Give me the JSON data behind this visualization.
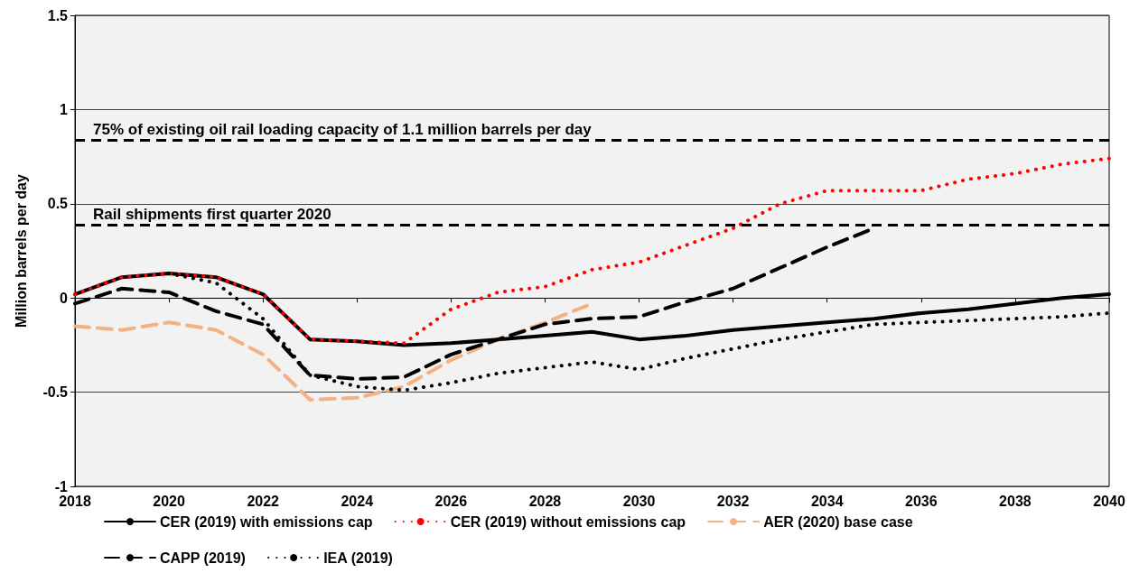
{
  "chart_data": {
    "type": "line",
    "ylabel": "Million barrels per day",
    "x": [
      2018,
      2019,
      2020,
      2021,
      2022,
      2023,
      2024,
      2025,
      2026,
      2027,
      2028,
      2029,
      2030,
      2031,
      2032,
      2033,
      2034,
      2035,
      2036,
      2037,
      2038,
      2039,
      2040
    ],
    "xlim": [
      2018,
      2040
    ],
    "xticks": [
      2018,
      2020,
      2022,
      2024,
      2026,
      2028,
      2030,
      2032,
      2034,
      2036,
      2038,
      2040
    ],
    "ylim": [
      -1,
      1.5
    ],
    "yticks": [
      -1,
      -0.5,
      0,
      0.5,
      1,
      1.5
    ],
    "grid": "y",
    "legend": "bottom",
    "marker": "none",
    "series": [
      {
        "name": "CER (2019) with emissions cap",
        "color": "#000000",
        "line_style": "solid",
        "values": [
          0.02,
          0.11,
          0.13,
          0.11,
          0.02,
          -0.22,
          -0.23,
          -0.25,
          -0.24,
          -0.22,
          -0.2,
          -0.18,
          -0.22,
          -0.2,
          -0.17,
          -0.15,
          -0.13,
          -0.11,
          -0.08,
          -0.06,
          -0.03,
          0,
          0.02
        ]
      },
      {
        "name": "CER (2019) without emissions cap",
        "color": "#ff0000",
        "line_style": "dotted",
        "values": [
          0.02,
          0.11,
          0.13,
          0.11,
          0.02,
          -0.22,
          -0.23,
          -0.24,
          -0.06,
          0.03,
          0.06,
          0.15,
          0.19,
          0.28,
          0.37,
          0.5,
          0.57,
          0.57,
          0.57,
          0.63,
          0.66,
          0.71,
          0.74
        ]
      },
      {
        "name": "AER (2020) base case",
        "color": "#f4b183",
        "line_style": "dashed",
        "values": [
          -0.15,
          -0.17,
          -0.13,
          -0.17,
          -0.3,
          -0.54,
          -0.53,
          -0.47,
          -0.33,
          -0.22,
          -0.13,
          -0.03,
          null,
          null,
          null,
          null,
          null,
          null,
          null,
          null,
          null,
          null,
          null
        ]
      },
      {
        "name": "CAPP (2019)",
        "color": "#000000",
        "line_style": "dashed",
        "values": [
          -0.03,
          0.05,
          0.03,
          -0.07,
          -0.14,
          -0.41,
          -0.43,
          -0.42,
          -0.3,
          -0.22,
          -0.14,
          -0.11,
          -0.1,
          -0.02,
          0.05,
          0.16,
          0.27,
          0.37,
          null,
          null,
          null,
          null,
          null
        ]
      },
      {
        "name": "IEA (2019)",
        "color": "#000000",
        "line_style": "dotted",
        "values": [
          null,
          null,
          0.13,
          0.08,
          -0.11,
          -0.41,
          -0.47,
          -0.49,
          -0.45,
          -0.4,
          -0.37,
          -0.34,
          -0.38,
          -0.32,
          -0.27,
          -0.22,
          -0.18,
          -0.14,
          -0.13,
          -0.12,
          -0.11,
          -0.1,
          -0.08
        ]
      }
    ],
    "ref_lines": [
      {
        "axis": "y",
        "value": 0.84,
        "label": "75% of existing oil rail loading capacity of 1.1 million barrels per day",
        "color": "#000000",
        "line_style": "dashed"
      },
      {
        "axis": "y",
        "value": 0.39,
        "label": "Rail shipments first quarter 2020",
        "color": "#000000",
        "line_style": "dashed"
      }
    ]
  }
}
